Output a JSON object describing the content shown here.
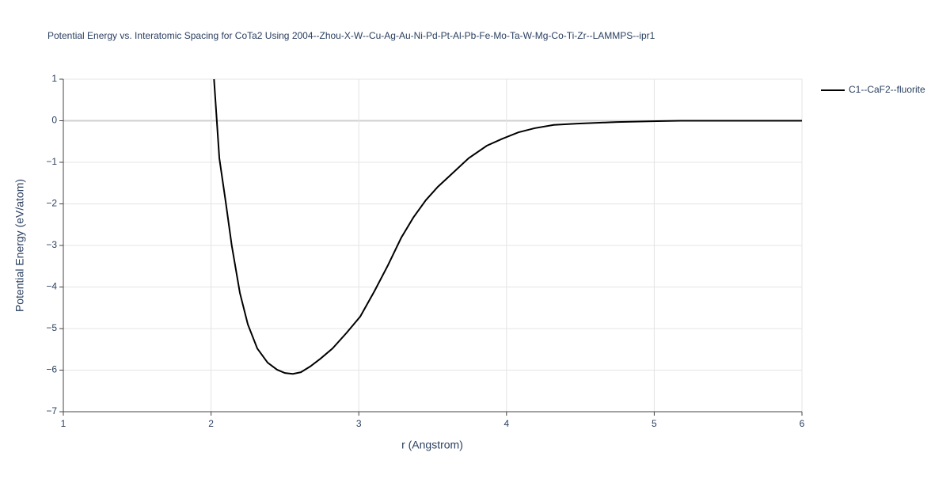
{
  "chart_data": {
    "type": "line",
    "title": "Potential Energy vs. Interatomic Spacing for CoTa2 Using 2004--Zhou-X-W--Cu-Ag-Au-Ni-Pd-Pt-Al-Pb-Fe-Mo-Ta-W-Mg-Co-Ti-Zr--LAMMPS--ipr1",
    "x_label": "r (Angstrom)",
    "y_label": "Potential Energy (eV/atom)",
    "xlim": [
      1,
      6
    ],
    "ylim": [
      -7,
      1
    ],
    "xticks": [
      1,
      2,
      3,
      4,
      5,
      6
    ],
    "yticks": [
      {
        "value": -7,
        "label": "−7"
      },
      {
        "value": -6,
        "label": "−6"
      },
      {
        "value": -5,
        "label": "−5"
      },
      {
        "value": -4,
        "label": "−4"
      },
      {
        "value": -3,
        "label": "−3"
      },
      {
        "value": -2,
        "label": "−2"
      },
      {
        "value": -1,
        "label": "−1"
      },
      0,
      1
    ],
    "grid": true,
    "legend": "top-right",
    "x": [
      2.02,
      2.056,
      2.099,
      2.14,
      2.195,
      2.249,
      2.313,
      2.383,
      2.447,
      2.5,
      2.554,
      2.608,
      2.672,
      2.742,
      2.822,
      2.918,
      3.01,
      3.106,
      3.197,
      3.288,
      3.369,
      3.454,
      3.535,
      3.626,
      3.744,
      3.867,
      3.974,
      4.08,
      4.19,
      4.32,
      4.48,
      4.75,
      5.02,
      5.18,
      6.0
    ],
    "series": [
      {
        "name": "C1--CaF2--fluorite",
        "color": "#000000",
        "values": [
          1.0,
          -0.9,
          -1.95,
          -3.0,
          -4.14,
          -4.9,
          -5.48,
          -5.82,
          -5.99,
          -6.07,
          -6.09,
          -6.05,
          -5.91,
          -5.72,
          -5.48,
          -5.1,
          -4.71,
          -4.1,
          -3.48,
          -2.81,
          -2.33,
          -1.91,
          -1.59,
          -1.29,
          -0.9,
          -0.6,
          -0.43,
          -0.28,
          -0.18,
          -0.1,
          -0.07,
          -0.03,
          -0.01,
          0,
          0
        ]
      }
    ]
  }
}
